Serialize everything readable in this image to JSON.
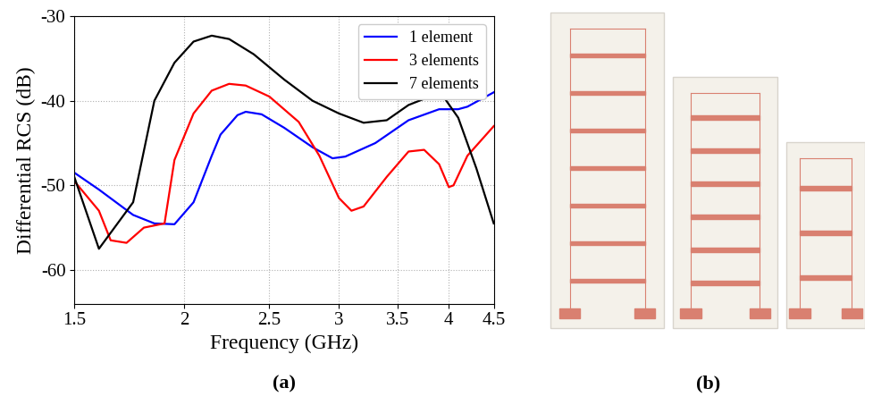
{
  "chart_data": {
    "type": "line",
    "x_label": "Frequency (GHz)",
    "y_label": "Differential RCS (dB)",
    "log": "x",
    "grid": true,
    "legend": "upper right",
    "xlim": [
      1.5,
      4.5
    ],
    "xticks": [
      1.5,
      2,
      2.5,
      3,
      3.5,
      4,
      4.5
    ],
    "ylim": [
      -64,
      -30
    ],
    "yticks": [
      -60,
      -50,
      -40,
      -30
    ],
    "series": [
      {
        "name": "1 element",
        "color": "#0000ff",
        "x": [
          1.5,
          1.6,
          1.75,
          1.85,
          1.95,
          2.05,
          2.15,
          2.2,
          2.3,
          2.35,
          2.45,
          2.6,
          2.8,
          2.95,
          3.05,
          3.3,
          3.6,
          3.9,
          4.1,
          4.2,
          4.5
        ],
        "values": [
          -48.5,
          -50.5,
          -53.5,
          -54.5,
          -54.6,
          -52,
          -46.5,
          -44,
          -41.7,
          -41.3,
          -41.6,
          -43.2,
          -45.5,
          -46.8,
          -46.6,
          -45,
          -42.3,
          -41,
          -41,
          -40.7,
          -39
        ]
      },
      {
        "name": "3 elements",
        "color": "#ff0000",
        "x": [
          1.5,
          1.6,
          1.65,
          1.72,
          1.8,
          1.9,
          1.95,
          2.05,
          2.15,
          2.25,
          2.35,
          2.5,
          2.7,
          2.85,
          3.0,
          3.1,
          3.2,
          3.4,
          3.6,
          3.75,
          3.9,
          4.0,
          4.05,
          4.2,
          4.5
        ],
        "values": [
          -49.5,
          -53,
          -56.5,
          -56.8,
          -55,
          -54.5,
          -47,
          -41.5,
          -38.8,
          -38,
          -38.2,
          -39.5,
          -42.5,
          -46.5,
          -51.5,
          -53,
          -52.5,
          -49,
          -46,
          -45.8,
          -47.5,
          -50.2,
          -50,
          -46.5,
          -43
        ]
      },
      {
        "name": "7 elements",
        "color": "#000000",
        "x": [
          1.5,
          1.6,
          1.75,
          1.85,
          1.95,
          2.05,
          2.15,
          2.25,
          2.4,
          2.6,
          2.8,
          3.0,
          3.2,
          3.4,
          3.6,
          3.85,
          3.95,
          4.1,
          4.3,
          4.5
        ],
        "values": [
          -49,
          -57.5,
          -52,
          -40,
          -35.5,
          -33,
          -32.3,
          -32.7,
          -34.5,
          -37.5,
          -40,
          -41.5,
          -42.6,
          -42.3,
          -40.5,
          -39.3,
          -39.6,
          -42,
          -48,
          -54.5
        ]
      }
    ]
  },
  "panel_labels": [
    "(a)",
    "(b)"
  ]
}
